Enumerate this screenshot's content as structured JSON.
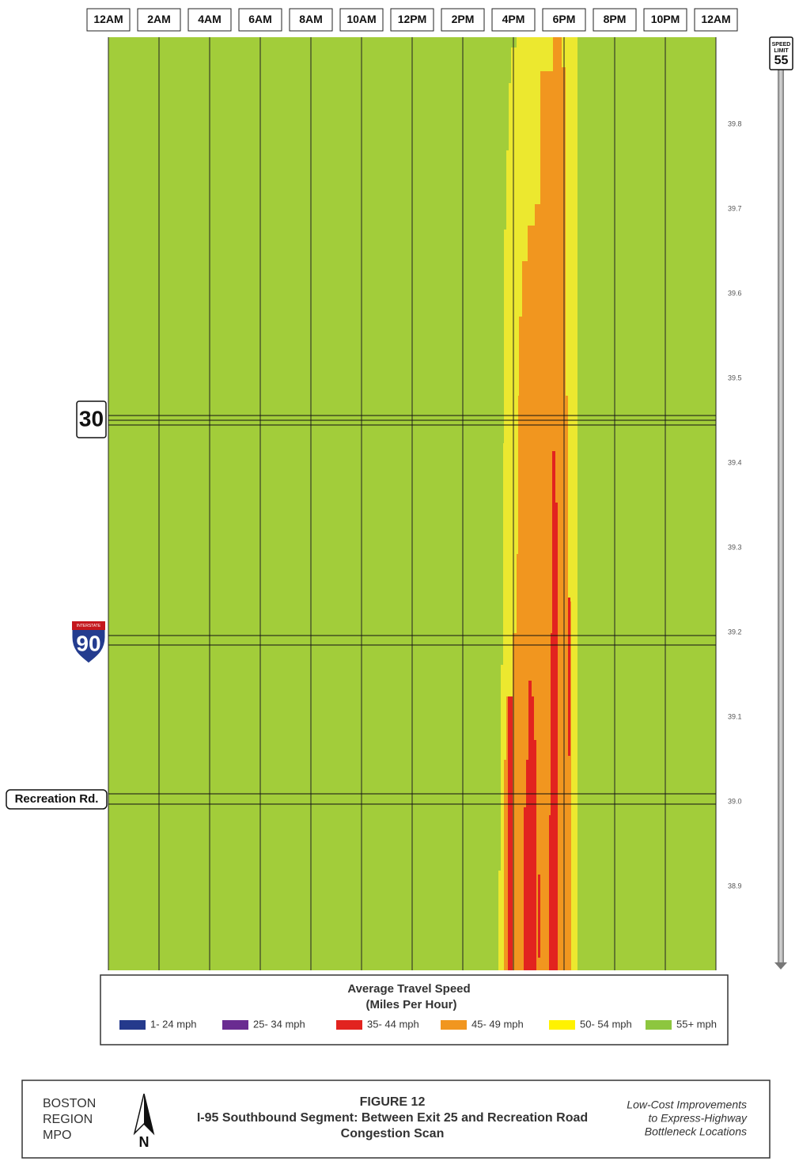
{
  "time_axis": [
    "12AM",
    "2AM",
    "4AM",
    "6AM",
    "8AM",
    "10AM",
    "12PM",
    "2PM",
    "4PM",
    "6PM",
    "8PM",
    "10PM",
    "12AM"
  ],
  "mile_axis": [
    "39.8",
    "39.7",
    "39.6",
    "39.5",
    "39.4",
    "39.3",
    "39.2",
    "39.1",
    "39.0",
    "38.9"
  ],
  "speed_sign": {
    "line1": "SPEED",
    "line2": "LIMIT",
    "number": "55"
  },
  "landmarks": {
    "route": "30",
    "interstate_top": "INTERSTATE",
    "interstate": "90",
    "road": "Recreation Rd."
  },
  "legend": {
    "title": "Average Travel Speed",
    "subtitle": "(Miles Per Hour)",
    "items": [
      {
        "label": "1- 24 mph",
        "color": "#253a8c"
      },
      {
        "label": "25- 34 mph",
        "color": "#6a2c91"
      },
      {
        "label": "35- 44 mph",
        "color": "#e2231f"
      },
      {
        "label": "45- 49 mph",
        "color": "#f1961f"
      },
      {
        "label": "50- 54 mph",
        "color": "#fff200"
      },
      {
        "label": "55+ mph",
        "color": "#8dc63f"
      }
    ]
  },
  "footer": {
    "org": [
      "BOSTON",
      "REGION",
      "MPO"
    ],
    "north": "N",
    "figure": "FIGURE 12",
    "title": "I-95 Southbound Segment: Between Exit 25 and Recreation Road",
    "subtitle": "Congestion Scan",
    "note": [
      "Low-Cost Improvements",
      "to Express-Highway",
      "Bottleneck Locations"
    ]
  }
}
